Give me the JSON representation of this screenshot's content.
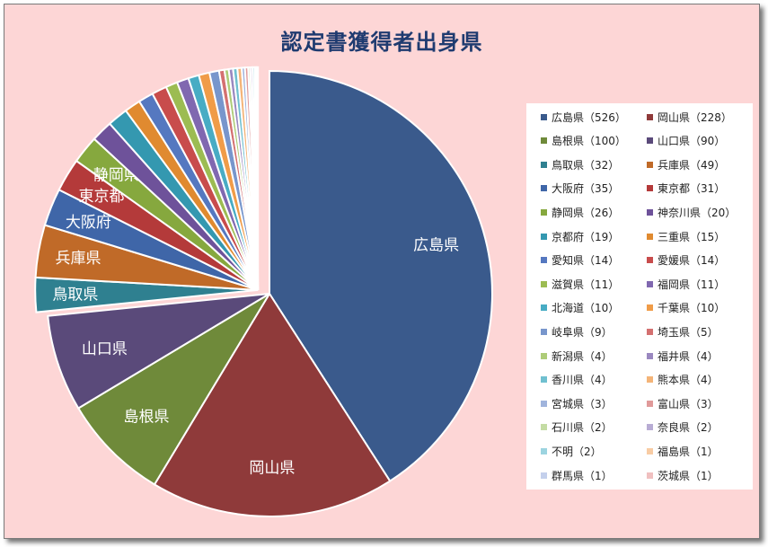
{
  "chart_data": {
    "type": "pie",
    "title": "認定書獲得者出身県",
    "slices": [
      {
        "label": "広島県",
        "value": 526,
        "legend": "広島県（526）",
        "color": "#3a5a8c"
      },
      {
        "label": "岡山県",
        "value": 228,
        "legend": "岡山県（228）",
        "color": "#8f3a3a"
      },
      {
        "label": "島根県",
        "value": 100,
        "legend": "島根県（100）",
        "color": "#6f8a3a"
      },
      {
        "label": "山口県",
        "value": 90,
        "legend": "山口県（90）",
        "color": "#5a4a7a"
      },
      {
        "label": "鳥取県",
        "value": 32,
        "legend": "鳥取県（32）",
        "color": "#2f8090"
      },
      {
        "label": "兵庫県",
        "value": 49,
        "legend": "兵庫県（49）",
        "color": "#c06a28"
      },
      {
        "label": "大阪府",
        "value": 35,
        "legend": "大阪府（35）",
        "color": "#3f66a8"
      },
      {
        "label": "東京都",
        "value": 31,
        "legend": "東京都（31）",
        "color": "#b43a3a"
      },
      {
        "label": "静岡県",
        "value": 26,
        "legend": "静岡県（26）",
        "color": "#86a83e"
      },
      {
        "label": "神奈川県",
        "value": 20,
        "legend": "神奈川県（20）",
        "color": "#6e529a"
      },
      {
        "label": "京都府",
        "value": 19,
        "legend": "京都府（19）",
        "color": "#3498b0"
      },
      {
        "label": "三重県",
        "value": 15,
        "legend": "三重県（15）",
        "color": "#e08a30"
      },
      {
        "label": "愛知県",
        "value": 14,
        "legend": "愛知県（14）",
        "color": "#5578c0"
      },
      {
        "label": "愛媛県",
        "value": 14,
        "legend": "愛媛県（14）",
        "color": "#c84c4c"
      },
      {
        "label": "滋賀県",
        "value": 11,
        "legend": "滋賀県（11）",
        "color": "#9cbc52"
      },
      {
        "label": "福岡県",
        "value": 11,
        "legend": "福岡県（11）",
        "color": "#8068b0"
      },
      {
        "label": "北海道",
        "value": 10,
        "legend": "北海道（10）",
        "color": "#48acc4"
      },
      {
        "label": "千葉県",
        "value": 10,
        "legend": "千葉県（10）",
        "color": "#f09c48"
      },
      {
        "label": "岐阜県",
        "value": 9,
        "legend": "岐阜県（9）",
        "color": "#7896cc"
      },
      {
        "label": "埼玉県",
        "value": 5,
        "legend": "埼玉県（5）",
        "color": "#d47070"
      },
      {
        "label": "新潟県",
        "value": 4,
        "legend": "新潟県（4）",
        "color": "#aecc78"
      },
      {
        "label": "福井県",
        "value": 4,
        "legend": "福井県（4）",
        "color": "#9a88c0"
      },
      {
        "label": "香川県",
        "value": 4,
        "legend": "香川県（4）",
        "color": "#70c0d0"
      },
      {
        "label": "熊本県",
        "value": 4,
        "legend": "熊本県（4）",
        "color": "#f4b478"
      },
      {
        "label": "宮城県",
        "value": 3,
        "legend": "宮城県（3）",
        "color": "#a0b4dc"
      },
      {
        "label": "富山県",
        "value": 3,
        "legend": "富山県（3）",
        "color": "#e09a9a"
      },
      {
        "label": "石川県",
        "value": 2,
        "legend": "石川県（2）",
        "color": "#c4dca4"
      },
      {
        "label": "奈良県",
        "value": 2,
        "legend": "奈良県（2）",
        "color": "#b8acd4"
      },
      {
        "label": "不明",
        "value": 2,
        "legend": "不明（2）",
        "color": "#9cd4e0"
      },
      {
        "label": "福島県",
        "value": 1,
        "legend": "福島県（1）",
        "color": "#f8cca4"
      },
      {
        "label": "群馬県",
        "value": 1,
        "legend": "群馬県（1）",
        "color": "#c4d0ec"
      },
      {
        "label": "茨城県",
        "value": 1,
        "legend": "茨城県（1）",
        "color": "#f0c0c0"
      }
    ],
    "labeled_slices": [
      "広島県",
      "岡山県",
      "島根県",
      "山口県",
      "鳥取県",
      "兵庫県",
      "大阪府",
      "東京都",
      "静岡県"
    ],
    "legend_position": "right"
  }
}
